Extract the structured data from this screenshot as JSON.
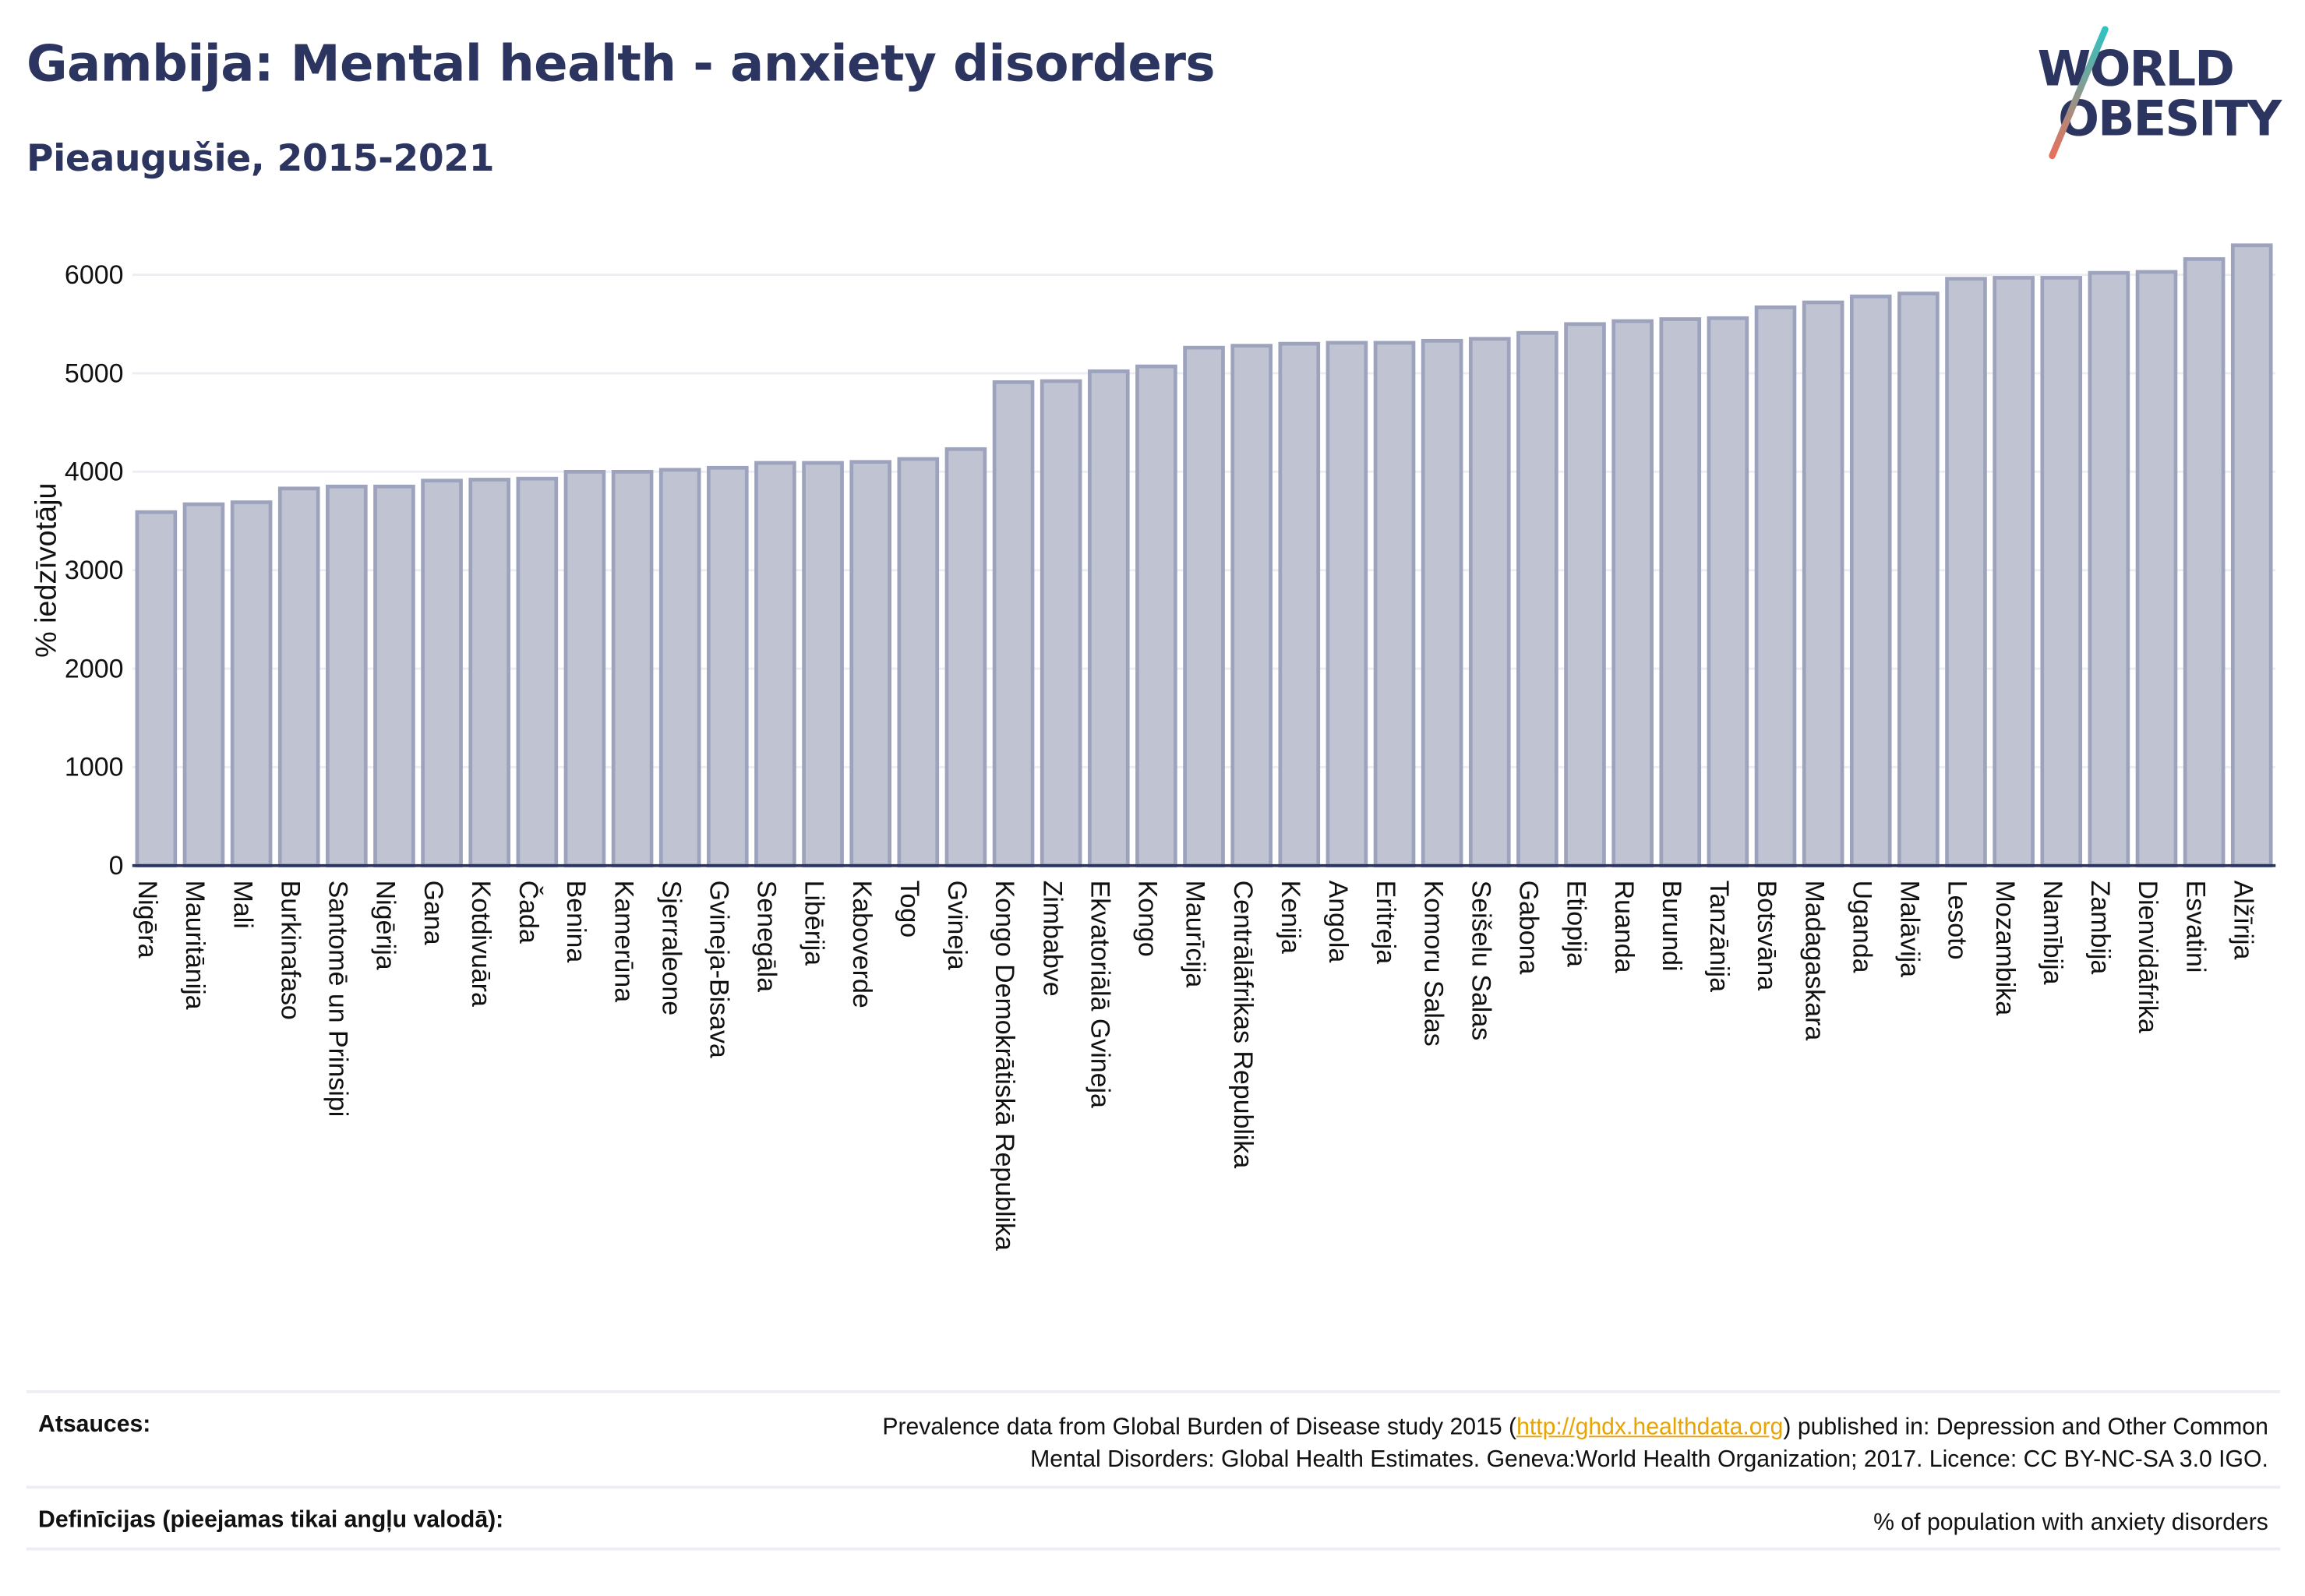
{
  "header": {
    "title": "Gambija: Mental health - anxiety disorders",
    "subtitle": "Pieaugušie, 2015-2021"
  },
  "logo": {
    "line1": "WORLD",
    "line2": "OBESITY",
    "colors": {
      "text": "#2b3560",
      "slash_top": "#2fc3c2",
      "slash_bottom": "#e8705c"
    }
  },
  "colors": {
    "bar_fill": "#bfc3d2",
    "bar_stroke": "#9da3bd",
    "grid": "#eceef3",
    "axis": "#2b3560",
    "link": "#e9a400"
  },
  "chart_data": {
    "type": "bar",
    "title": "Gambija: Mental health - anxiety disorders",
    "subtitle": "Pieaugušie, 2015-2021",
    "xlabel": "",
    "ylabel": "% iedzīvotāju",
    "ylim": [
      0,
      6000
    ],
    "yticks": [
      0,
      1000,
      2000,
      3000,
      4000,
      5000,
      6000
    ],
    "grid": true,
    "legend": "none",
    "categories": [
      "Nigēra",
      "Mauritānija",
      "Mali",
      "Burkinafaso",
      "Santomē un Prinsipi",
      "Nigērija",
      "Gana",
      "Kotdivuāra",
      "Čada",
      "Benina",
      "Kamerūna",
      "Sjerraleone",
      "Gvineja-Bisava",
      "Senegāla",
      "Libērija",
      "Kaboverde",
      "Togo",
      "Gvineja",
      "Kongo Demokrātiskā Republika",
      "Zimbabve",
      "Ekvatoriālā Gvineja",
      "Kongo",
      "Maurīcija",
      "Centrālāfrikas Republika",
      "Kenija",
      "Angola",
      "Eritreja",
      "Komoru Salas",
      "Seišelu Salas",
      "Gabona",
      "Etiopija",
      "Ruanda",
      "Burundi",
      "Tanzānija",
      "Botsvāna",
      "Madagaskara",
      "Uganda",
      "Malāvija",
      "Lesoto",
      "Mozambika",
      "Namībija",
      "Zambija",
      "Dienvidāfrika",
      "Esvatini",
      "Alžīrija"
    ],
    "values": [
      3590,
      3670,
      3690,
      3830,
      3850,
      3850,
      3910,
      3920,
      3930,
      4000,
      4000,
      4020,
      4040,
      4090,
      4090,
      4100,
      4130,
      4230,
      4910,
      4920,
      5020,
      5070,
      5260,
      5280,
      5300,
      5310,
      5310,
      5330,
      5350,
      5410,
      5500,
      5530,
      5550,
      5560,
      5670,
      5720,
      5780,
      5810,
      5960,
      5970,
      5970,
      6020,
      6030,
      6160,
      6300
    ]
  },
  "footer": {
    "sources_label": "Atsauces:",
    "sources_pre": "Prevalence data from Global Burden of Disease study 2015 (",
    "sources_link": "http://ghdx.healthdata.org",
    "sources_post": ") published in: Depression and Other Common",
    "sources_line2": "Mental Disorders: Global Health Estimates. Geneva:World Health Organization; 2017. Licence: CC BY-NC-SA 3.0 IGO.",
    "definitions_label": "Definīcijas (pieejamas tikai angļu valodā):",
    "definitions_text": "% of population with anxiety disorders"
  }
}
